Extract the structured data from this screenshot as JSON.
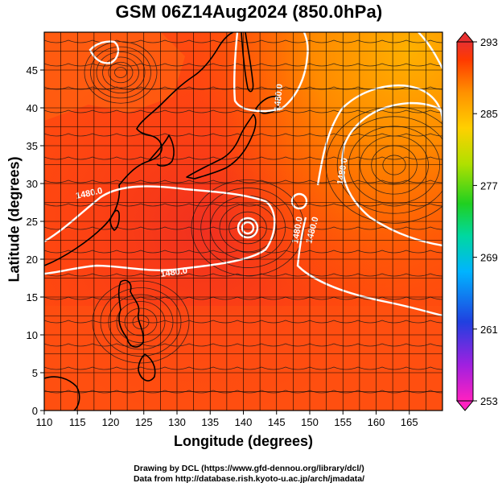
{
  "title": "GSM 06Z14Aug2024 (850.0hPa)",
  "axes": {
    "xlabel": "Longitude (degrees)",
    "ylabel": "Latitude  (degrees)",
    "xlim": [
      110,
      170
    ],
    "ylim": [
      0,
      50
    ],
    "xticks": [
      110,
      115,
      120,
      125,
      130,
      135,
      140,
      145,
      150,
      155,
      160,
      165
    ],
    "yticks": [
      0,
      5,
      10,
      15,
      20,
      25,
      30,
      35,
      40,
      45
    ]
  },
  "colorbar": {
    "ticks": [
      253,
      261,
      269,
      277,
      285,
      293
    ],
    "range": [
      253,
      293
    ],
    "colors": [
      "#ff20c0",
      "#a020e0",
      "#2040e0",
      "#00b4ff",
      "#00d8a0",
      "#20d020",
      "#b0e000",
      "#ffd000",
      "#ff9000",
      "#ff3a00",
      "#e83030"
    ]
  },
  "contours": {
    "label": "1480.0",
    "labels_shown": [
      "1480.0",
      "1480.0",
      "1480.0",
      "1480.0",
      "1480.0",
      "1480.0"
    ]
  },
  "credits": {
    "line1": "Drawing by DCL (https://www.gfd-dennou.org/library/dcl/)",
    "line2": "Data from http://database.rish.kyoto-u.ac.jp/arch/jmadata/"
  },
  "map_field": "temperature-shading-with-streamlines"
}
